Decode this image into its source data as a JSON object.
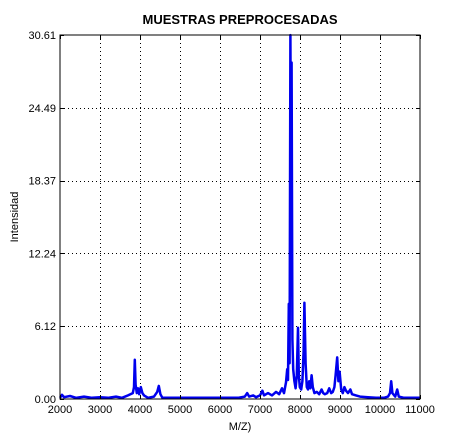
{
  "chart_data": {
    "type": "line",
    "title": "MUESTRAS PREPROCESADAS",
    "xlabel": "M/Z)",
    "ylabel": "Intensidad",
    "xlim": [
      2000,
      11000
    ],
    "ylim": [
      0,
      30.61
    ],
    "xticks": [
      2000,
      3000,
      4000,
      5000,
      6000,
      7000,
      8000,
      9000,
      10000,
      11000
    ],
    "yticks": [
      0,
      6.12,
      12.24,
      18.37,
      24.49,
      30.61
    ],
    "ytick_labels": [
      "0.00",
      "6.12",
      "12.24",
      "18.37",
      "24.49",
      "30.61"
    ],
    "grid": true,
    "grid_style": "dotted",
    "line_color": "#0000ee",
    "series": [
      {
        "points": [
          [
            2000,
            0.1
          ],
          [
            2050,
            0.35
          ],
          [
            2100,
            0.15
          ],
          [
            2250,
            0.25
          ],
          [
            2400,
            0.1
          ],
          [
            2600,
            0.2
          ],
          [
            2800,
            0.1
          ],
          [
            3000,
            0.15
          ],
          [
            3200,
            0.1
          ],
          [
            3400,
            0.2
          ],
          [
            3550,
            0.1
          ],
          [
            3700,
            0.3
          ],
          [
            3820,
            0.5
          ],
          [
            3850,
            1.0
          ],
          [
            3870,
            3.3
          ],
          [
            3890,
            1.2
          ],
          [
            3920,
            0.5
          ],
          [
            3950,
            0.9
          ],
          [
            3980,
            0.4
          ],
          [
            4020,
            1.0
          ],
          [
            4060,
            0.5
          ],
          [
            4100,
            0.3
          ],
          [
            4200,
            0.1
          ],
          [
            4350,
            0.2
          ],
          [
            4430,
            0.6
          ],
          [
            4470,
            1.1
          ],
          [
            4510,
            0.4
          ],
          [
            4560,
            0.1
          ],
          [
            4700,
            0.1
          ],
          [
            4900,
            0.1
          ],
          [
            5100,
            0.1
          ],
          [
            5300,
            0.1
          ],
          [
            5600,
            0.1
          ],
          [
            5900,
            0.1
          ],
          [
            6200,
            0.1
          ],
          [
            6450,
            0.1
          ],
          [
            6620,
            0.2
          ],
          [
            6680,
            0.5
          ],
          [
            6730,
            0.2
          ],
          [
            6830,
            0.3
          ],
          [
            6900,
            0.15
          ],
          [
            7000,
            0.3
          ],
          [
            7060,
            0.7
          ],
          [
            7100,
            0.3
          ],
          [
            7200,
            0.5
          ],
          [
            7300,
            0.3
          ],
          [
            7400,
            0.6
          ],
          [
            7480,
            0.4
          ],
          [
            7550,
            0.9
          ],
          [
            7600,
            0.5
          ],
          [
            7650,
            1.4
          ],
          [
            7680,
            2.5
          ],
          [
            7700,
            1.6
          ],
          [
            7720,
            8.0
          ],
          [
            7740,
            3.0
          ],
          [
            7760,
            30.6
          ],
          [
            7780,
            12.0
          ],
          [
            7790,
            28.3
          ],
          [
            7810,
            5.0
          ],
          [
            7830,
            2.5
          ],
          [
            7860,
            1.5
          ],
          [
            7890,
            0.9
          ],
          [
            7920,
            2.0
          ],
          [
            7950,
            6.0
          ],
          [
            7970,
            2.0
          ],
          [
            7995,
            1.0
          ],
          [
            8030,
            0.8
          ],
          [
            8060,
            1.5
          ],
          [
            8090,
            4.0
          ],
          [
            8110,
            8.1
          ],
          [
            8140,
            3.0
          ],
          [
            8170,
            1.0
          ],
          [
            8200,
            0.8
          ],
          [
            8230,
            1.5
          ],
          [
            8260,
            0.9
          ],
          [
            8290,
            2.0
          ],
          [
            8320,
            1.0
          ],
          [
            8360,
            0.5
          ],
          [
            8420,
            0.6
          ],
          [
            8480,
            0.4
          ],
          [
            8540,
            0.8
          ],
          [
            8580,
            0.5
          ],
          [
            8620,
            0.4
          ],
          [
            8680,
            0.5
          ],
          [
            8730,
            0.9
          ],
          [
            8780,
            0.5
          ],
          [
            8820,
            0.6
          ],
          [
            8860,
            1.0
          ],
          [
            8890,
            2.0
          ],
          [
            8930,
            3.5
          ],
          [
            8960,
            1.5
          ],
          [
            8990,
            2.3
          ],
          [
            9030,
            0.8
          ],
          [
            9070,
            0.5
          ],
          [
            9110,
            1.0
          ],
          [
            9150,
            0.7
          ],
          [
            9200,
            0.5
          ],
          [
            9260,
            0.8
          ],
          [
            9300,
            0.4
          ],
          [
            9400,
            0.3
          ],
          [
            9500,
            0.2
          ],
          [
            9700,
            0.15
          ],
          [
            9900,
            0.1
          ],
          [
            10100,
            0.1
          ],
          [
            10200,
            0.2
          ],
          [
            10250,
            0.5
          ],
          [
            10280,
            1.5
          ],
          [
            10310,
            0.5
          ],
          [
            10380,
            0.2
          ],
          [
            10430,
            0.8
          ],
          [
            10470,
            0.2
          ],
          [
            10600,
            0.1
          ],
          [
            10800,
            0.1
          ],
          [
            11000,
            0.1
          ]
        ]
      }
    ]
  }
}
